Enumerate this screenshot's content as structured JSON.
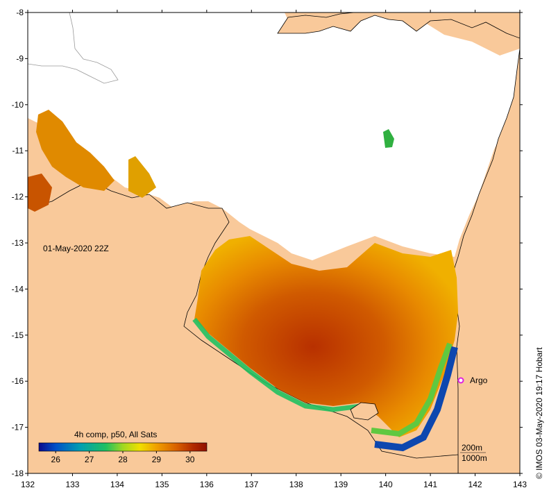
{
  "map": {
    "timestamp": "01-May-2020 22Z",
    "credit": "© IMOS 03-May-2020 19:17 Hobart",
    "lon_ticks": [
      "132",
      "133",
      "134",
      "135",
      "136",
      "137",
      "138",
      "139",
      "140",
      "141",
      "142",
      "143"
    ],
    "lat_ticks": [
      "-8",
      "-9",
      "-10",
      "-11",
      "-12",
      "-13",
      "-14",
      "-15",
      "-16",
      "-17",
      "-18"
    ],
    "lon_range": [
      132,
      143
    ],
    "lat_range": [
      -8,
      -18
    ],
    "colorbar": {
      "title": "4h comp, p50, All Sats",
      "range": [
        25.5,
        30.5
      ],
      "ticks": [
        "26",
        "27",
        "28",
        "29",
        "30"
      ],
      "stops": [
        "#0a0a8c",
        "#0050c8",
        "#00a0b0",
        "#20c060",
        "#a0d820",
        "#f0e000",
        "#f0a000",
        "#d86000",
        "#b02800",
        "#901000"
      ]
    },
    "argo": {
      "label": "Argo",
      "lon": 141.7,
      "lat": -16.0,
      "color": "#e020e0"
    },
    "depth_contours": [
      "200m",
      "1000m"
    ],
    "colors": {
      "land": "#f9c99a",
      "cloud": "#ffffff",
      "coast": "#000000"
    }
  }
}
